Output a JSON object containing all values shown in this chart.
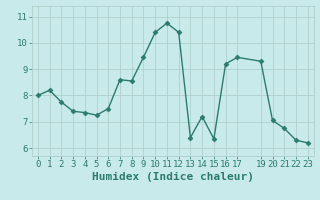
{
  "xlabel": "Humidex (Indice chaleur)",
  "ylabel": "",
  "x_values": [
    0,
    1,
    2,
    3,
    4,
    5,
    6,
    7,
    8,
    9,
    10,
    11,
    12,
    13,
    14,
    15,
    16,
    17,
    19,
    20,
    21,
    22,
    23
  ],
  "y_values": [
    8.0,
    8.2,
    7.75,
    7.4,
    7.35,
    7.25,
    7.5,
    8.6,
    8.55,
    9.45,
    10.4,
    10.75,
    10.4,
    6.4,
    7.2,
    6.35,
    9.2,
    9.45,
    9.3,
    7.05,
    6.75,
    6.3,
    6.2
  ],
  "line_color": "#2d7b6e",
  "marker": "D",
  "marker_size": 2.5,
  "bg_color": "#c8eaea",
  "plot_bg_color": "#c8eaea",
  "grid_color": "#b0d0cc",
  "xlim": [
    -0.5,
    23.5
  ],
  "ylim": [
    5.7,
    11.4
  ],
  "yticks": [
    6,
    7,
    8,
    9,
    10,
    11
  ],
  "xticks": [
    0,
    1,
    2,
    3,
    4,
    5,
    6,
    7,
    8,
    9,
    10,
    11,
    12,
    13,
    14,
    15,
    16,
    17,
    19,
    20,
    21,
    22,
    23
  ],
  "xtick_labels": [
    "0",
    "1",
    "2",
    "3",
    "4",
    "5",
    "6",
    "7",
    "8",
    "9",
    "10",
    "11",
    "12",
    "13",
    "14",
    "15",
    "16",
    "17",
    "19",
    "20",
    "21",
    "22",
    "23"
  ],
  "tick_label_fontsize": 6.5,
  "xlabel_fontsize": 8.0,
  "linewidth": 1.0
}
